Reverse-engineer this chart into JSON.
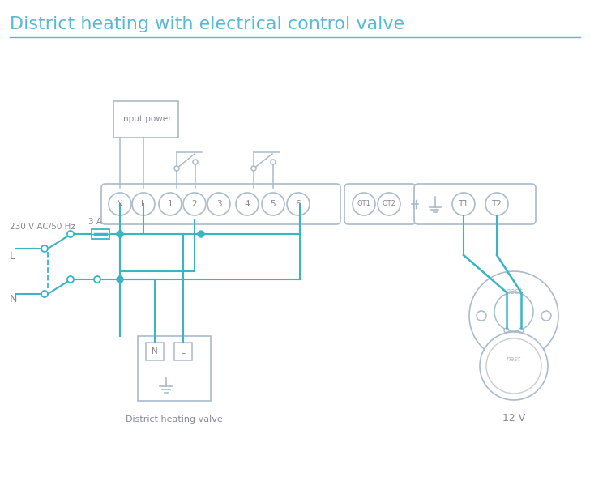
{
  "title": "District heating with electrical control valve",
  "title_color": "#5bb8d4",
  "title_fontsize": 16,
  "bg_color": "#ffffff",
  "wire_color": "#3ab5c6",
  "outline_color": "#aabbcc",
  "text_color": "#888899",
  "terminal_labels": [
    "N",
    "L",
    "1",
    "2",
    "3",
    "4",
    "5",
    "6"
  ],
  "ot_labels": [
    "OT1",
    "OT2"
  ],
  "right_labels": [
    "T1",
    "T2"
  ],
  "valve_label": "District heating valve",
  "nest_label": "12 V",
  "power_label": "Input power",
  "voltage_label": "230 V AC/50 Hz",
  "fuse_label": "3 A",
  "L_label": "L",
  "N_label": "N"
}
